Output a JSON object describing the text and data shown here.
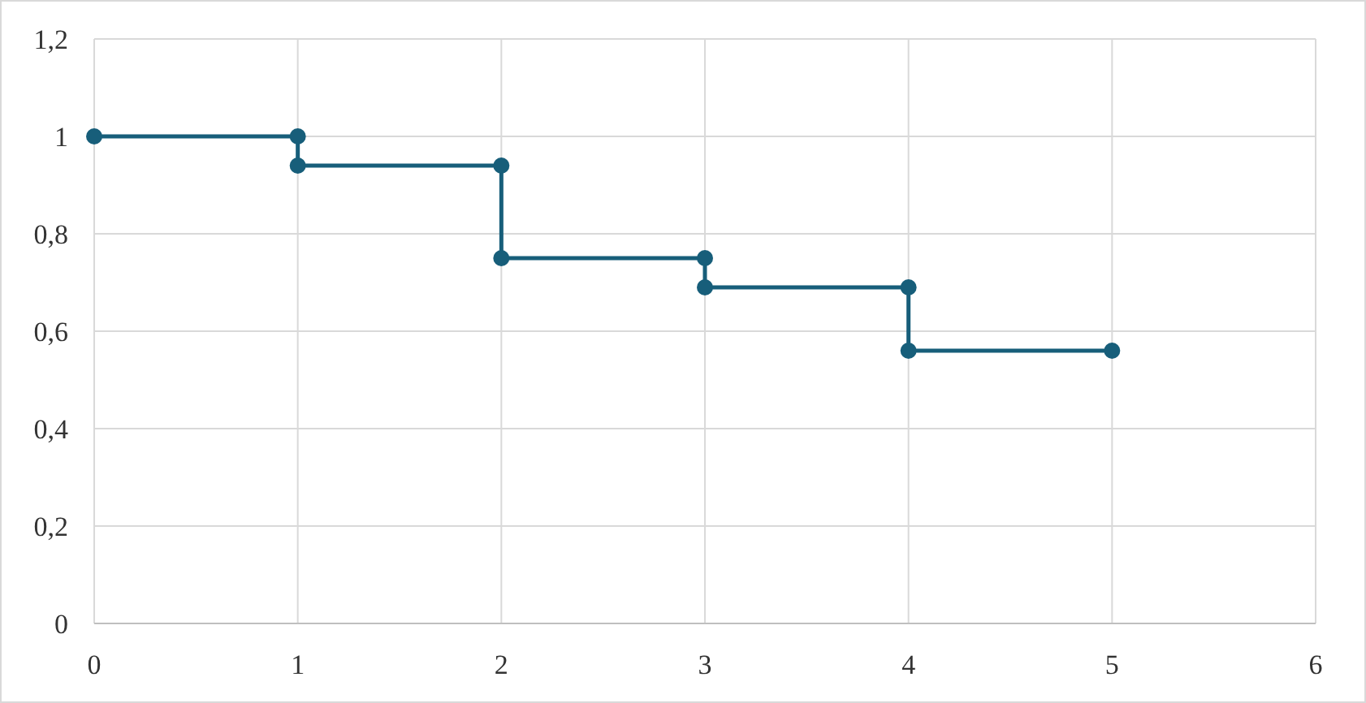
{
  "chart_data": {
    "type": "line",
    "marker": "circle",
    "line_style": "solid",
    "grid": true,
    "xlim": [
      0,
      6
    ],
    "xticks": [
      0,
      1,
      2,
      3,
      4,
      5,
      6
    ],
    "ylim": [
      0,
      1.2
    ],
    "yticks": [
      0,
      {
        "value": 0.2,
        "label": "0,2"
      },
      {
        "value": 0.4,
        "label": "0,4"
      },
      {
        "value": 0.6,
        "label": "0,6"
      },
      {
        "value": 0.8,
        "label": "0,8"
      },
      1,
      {
        "value": 1.2,
        "label": "1,2"
      }
    ],
    "series": [
      {
        "color": "#175e7a",
        "x": [
          0,
          1,
          1,
          2,
          2,
          3,
          3,
          4,
          4,
          5
        ],
        "values": [
          1,
          1,
          0.94,
          0.94,
          0.75,
          0.75,
          0.69,
          0.69,
          0.56,
          0.56
        ]
      }
    ]
  }
}
